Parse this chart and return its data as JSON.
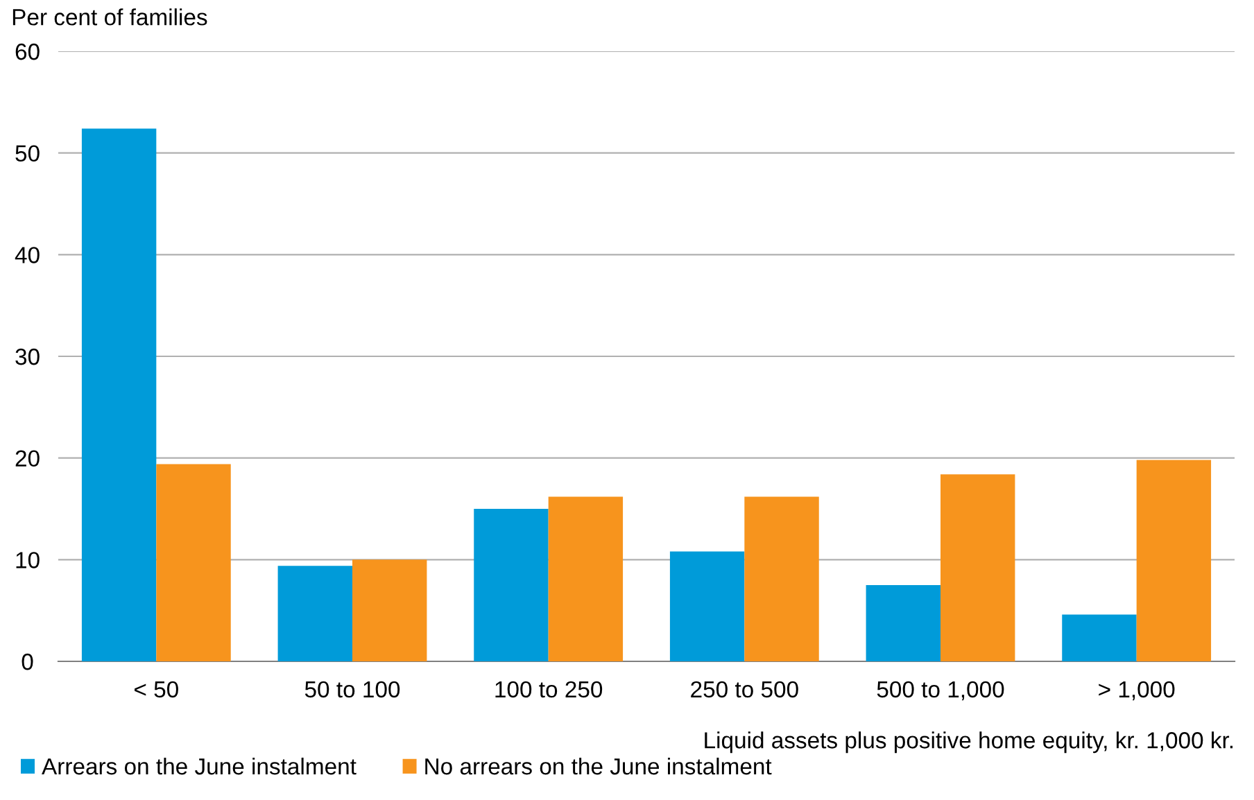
{
  "chart_data": {
    "type": "bar",
    "ylabel": "Per cent of families",
    "xlabel": "Liquid assets plus positive home equity, kr. 1,000 kr.",
    "categories": [
      "< 50",
      "50 to 100",
      "100 to 250",
      "250 to 500",
      "500 to 1,000",
      "> 1,000"
    ],
    "series": [
      {
        "name": "Arrears on the June instalment",
        "color": "#009bd9",
        "values": [
          52.4,
          9.4,
          15.0,
          10.8,
          7.5,
          4.6
        ]
      },
      {
        "name": "No arrears on the June instalment",
        "color": "#f7941d",
        "values": [
          19.4,
          10.0,
          16.2,
          16.2,
          18.4,
          19.8
        ]
      }
    ],
    "ylim": [
      0,
      60
    ],
    "yticks": [
      0,
      10,
      20,
      30,
      40,
      50,
      60
    ],
    "grid": "y",
    "legend": "bottom left"
  }
}
